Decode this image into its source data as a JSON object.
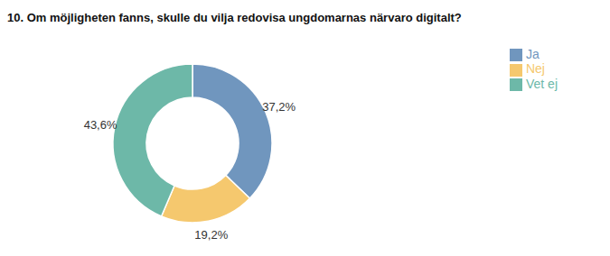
{
  "chart_data": {
    "type": "pie",
    "title": "10. Om möjligheten fanns, skulle du vilja redovisa ungdomarnas närvaro digitalt?",
    "categories": [
      "Ja",
      "Nej",
      "Vet ej"
    ],
    "values": [
      37.2,
      19.2,
      43.6
    ],
    "value_labels": [
      "37,2%",
      "19,2%",
      "43,6%"
    ],
    "colors": [
      "#7096be",
      "#f5c86e",
      "#6db8a8"
    ],
    "data_labels": true,
    "legend": "right"
  }
}
